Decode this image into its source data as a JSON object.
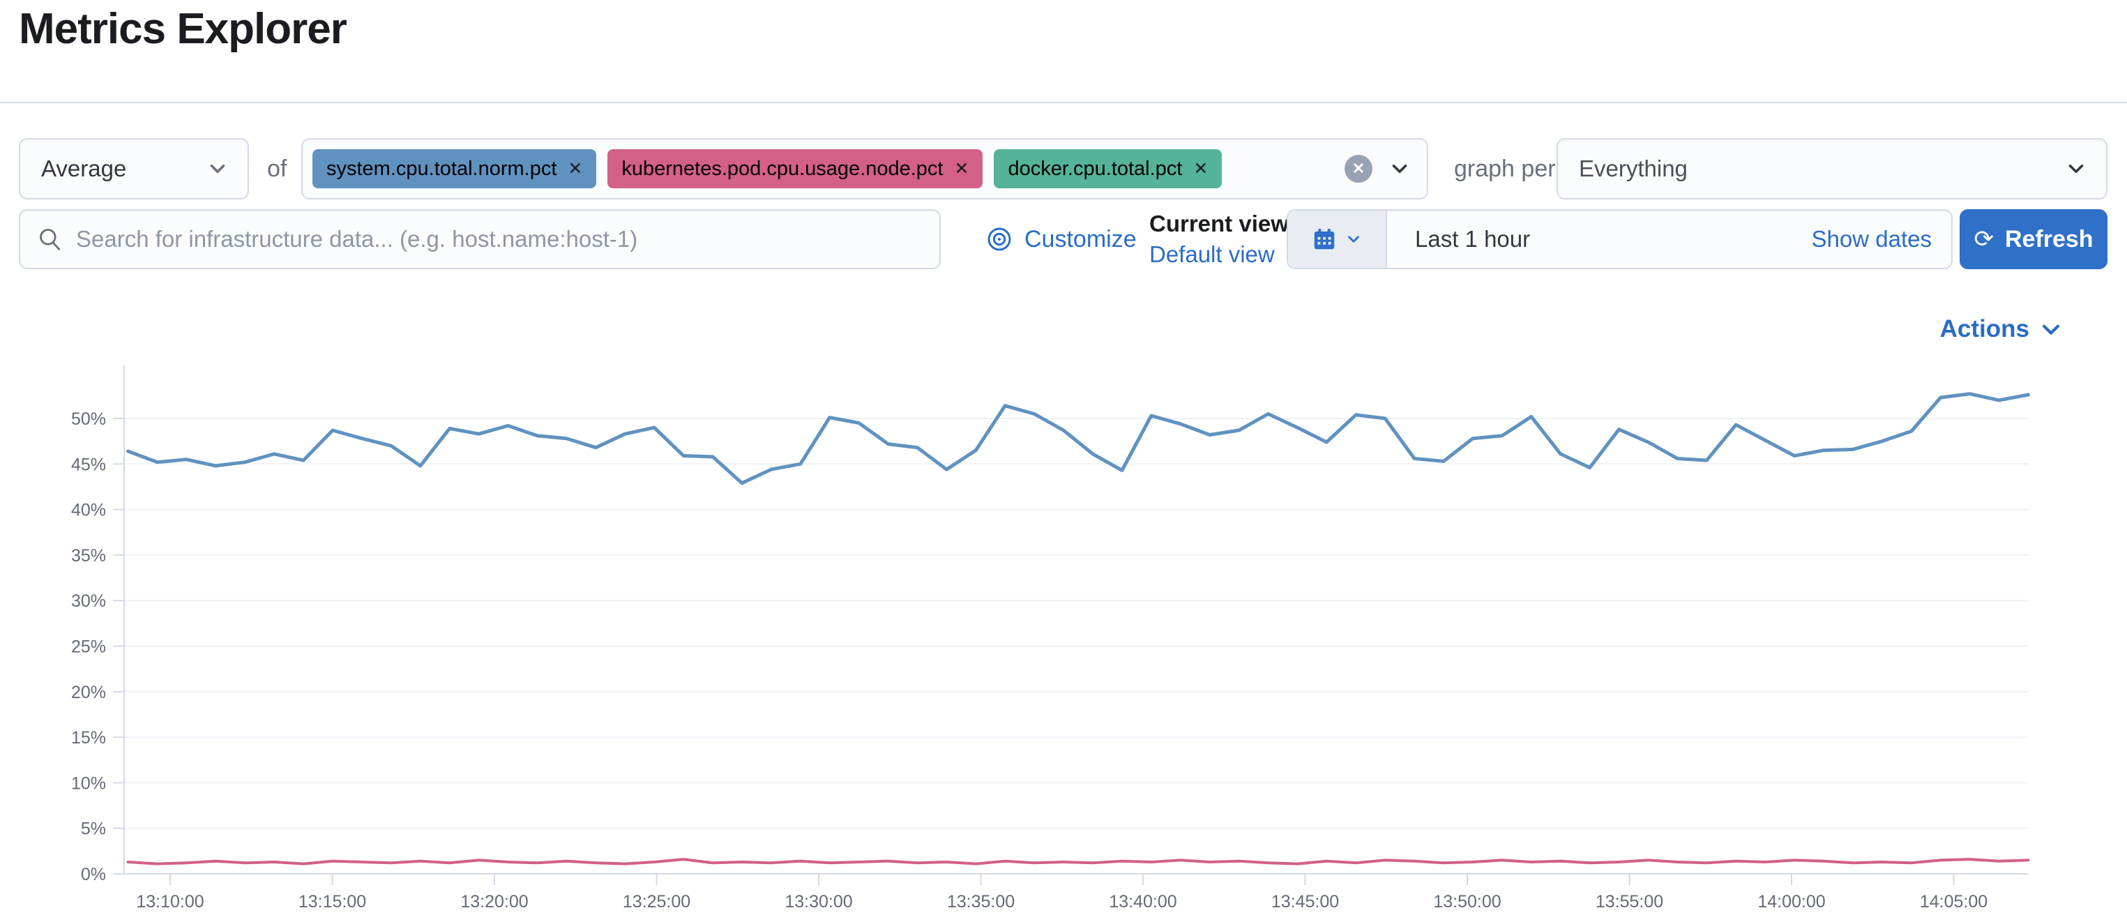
{
  "page": {
    "title": "Metrics Explorer"
  },
  "aggregation": {
    "value": "Average",
    "of_label": "of"
  },
  "metrics": {
    "badges": [
      {
        "label": "system.cpu.total.norm.pct",
        "color": "#6092C0"
      },
      {
        "label": "kubernetes.pod.cpu.usage.node.pct",
        "color": "#D36086"
      },
      {
        "label": "docker.cpu.total.pct",
        "color": "#54B399"
      }
    ],
    "remove_icon": "✕",
    "clear_icon": "✕"
  },
  "group_by": {
    "label": "graph per",
    "value": "Everything"
  },
  "search": {
    "placeholder": "Search for infrastructure data... (e.g. host.name:host-1)"
  },
  "toolbar": {
    "customize_label": "Customize",
    "current_view_label": "Current view",
    "default_view_label": "Default view",
    "time_range": "Last 1 hour",
    "show_dates_label": "Show dates",
    "refresh_label": "Refresh",
    "refresh_icon": "⟳",
    "actions_label": "Actions"
  },
  "colors": {
    "link": "#2a6cc5",
    "primary_button": "#2f70c8",
    "border": "#d3dae6",
    "grid": "#eef1f6",
    "axis_text": "#646a77"
  },
  "chart_data": {
    "type": "line",
    "title": "",
    "xlabel": "",
    "ylabel": "",
    "grid": true,
    "legend": "none",
    "ylim": [
      0,
      55.9
    ],
    "y_ticks": [
      {
        "value": 0,
        "label": "0%"
      },
      {
        "value": 5,
        "label": "5%"
      },
      {
        "value": 10,
        "label": "10%"
      },
      {
        "value": 15,
        "label": "15%"
      },
      {
        "value": 20,
        "label": "20%"
      },
      {
        "value": 25,
        "label": "25%"
      },
      {
        "value": 30,
        "label": "30%"
      },
      {
        "value": 35,
        "label": "35%"
      },
      {
        "value": 40,
        "label": "40%"
      },
      {
        "value": 45,
        "label": "45%"
      },
      {
        "value": 50,
        "label": "50%"
      }
    ],
    "x_ticks": [
      {
        "min": 10,
        "label": "13:10:00"
      },
      {
        "min": 15,
        "label": "13:15:00"
      },
      {
        "min": 20,
        "label": "13:20:00"
      },
      {
        "min": 25,
        "label": "13:25:00"
      },
      {
        "min": 30,
        "label": "13:30:00"
      },
      {
        "min": 35,
        "label": "13:35:00"
      },
      {
        "min": 40,
        "label": "13:40:00"
      },
      {
        "min": 45,
        "label": "13:45:00"
      },
      {
        "min": 50,
        "label": "13:50:00"
      },
      {
        "min": 55,
        "label": "13:55:00"
      },
      {
        "min": 60,
        "label": "14:00:00"
      },
      {
        "min": 65,
        "label": "14:05:00"
      }
    ],
    "x_range_minutes": [
      8.7,
      67.3
    ],
    "series": [
      {
        "name": "avg system.cpu.total.norm.pct",
        "color": "#6092C0",
        "unit": "%",
        "values": [
          46.4,
          45.2,
          45.5,
          44.8,
          45.2,
          46.1,
          45.4,
          48.7,
          47.8,
          47.0,
          44.8,
          48.9,
          48.3,
          49.2,
          48.1,
          47.8,
          46.8,
          48.3,
          49.0,
          45.9,
          45.8,
          42.9,
          44.4,
          45.0,
          50.1,
          49.5,
          47.2,
          46.8,
          44.4,
          46.5,
          51.4,
          50.5,
          48.7,
          46.1,
          44.3,
          50.3,
          49.4,
          48.2,
          48.7,
          50.5,
          49.0,
          47.4,
          50.4,
          50.0,
          45.6,
          45.3,
          47.8,
          48.1,
          50.2,
          46.1,
          44.6,
          48.8,
          47.4,
          45.6,
          45.4,
          49.3,
          47.6,
          45.9,
          46.5,
          46.6,
          47.5,
          48.6,
          52.3,
          52.7,
          52.0,
          52.6
        ]
      },
      {
        "name": "avg kubernetes.pod.cpu.usage.node.pct",
        "color": "#D36086",
        "unit": "%",
        "values": [
          1.3,
          1.1,
          1.2,
          1.4,
          1.2,
          1.3,
          1.1,
          1.4,
          1.3,
          1.2,
          1.4,
          1.2,
          1.5,
          1.3,
          1.2,
          1.4,
          1.2,
          1.1,
          1.3,
          1.6,
          1.2,
          1.3,
          1.2,
          1.4,
          1.2,
          1.3,
          1.4,
          1.2,
          1.3,
          1.1,
          1.4,
          1.2,
          1.3,
          1.2,
          1.4,
          1.3,
          1.5,
          1.3,
          1.4,
          1.2,
          1.1,
          1.4,
          1.2,
          1.5,
          1.4,
          1.2,
          1.3,
          1.5,
          1.3,
          1.4,
          1.2,
          1.3,
          1.5,
          1.3,
          1.2,
          1.4,
          1.3,
          1.5,
          1.4,
          1.2,
          1.3,
          1.2,
          1.5,
          1.6,
          1.4,
          1.5
        ]
      }
    ]
  }
}
